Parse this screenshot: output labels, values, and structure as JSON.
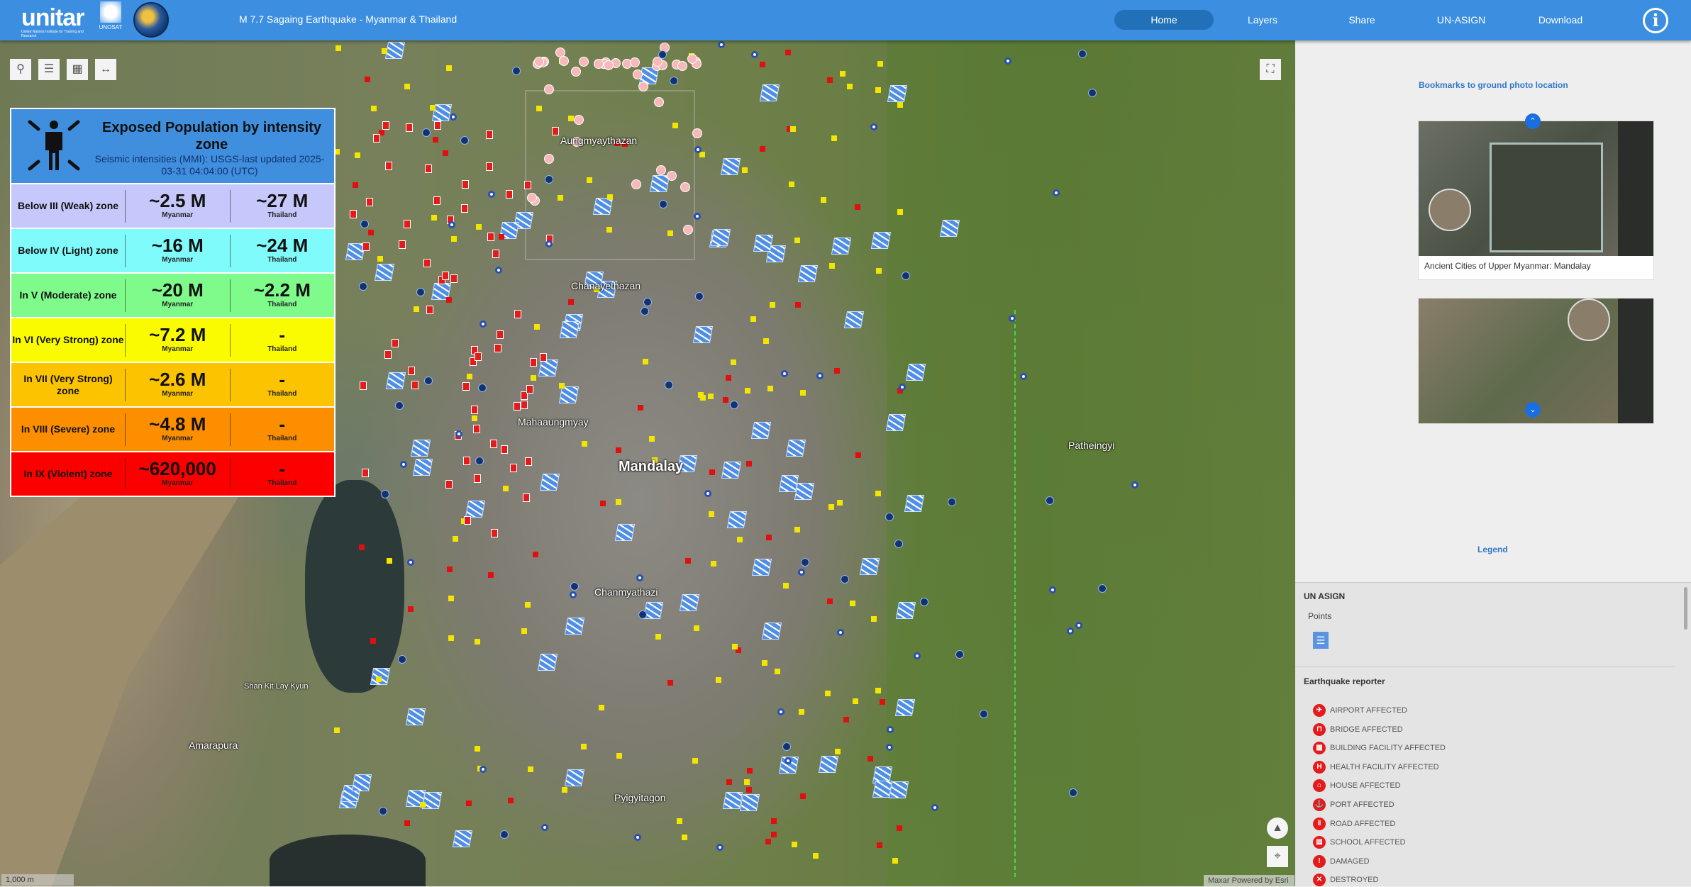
{
  "header": {
    "logo_unitar": "unitar",
    "logo_unitar_sub": "United Nations Institute for Training and Research",
    "logo_unosat": "UNOSAT",
    "title": "M 7.7 Sagaing Earthquake - Myanmar & Thailand",
    "nav": [
      {
        "label": "Home",
        "active": true
      },
      {
        "label": "Layers"
      },
      {
        "label": "Share"
      },
      {
        "label": "UN-ASIGN"
      },
      {
        "label": "Download"
      }
    ],
    "info_icon": "info-icon"
  },
  "map": {
    "labels": [
      "Aungmyaythazan",
      "Chanayethazan",
      "Mahaaungmyay",
      "Mandalay",
      "Chanmyathazi",
      "Pyigyitagon",
      "Amarapura",
      "Patheingyi",
      "Shan Kit Lay Kyun"
    ],
    "tools": [
      "search-icon",
      "layers-icon",
      "basemap-gallery-icon",
      "measure-icon"
    ],
    "scale": "1,000 m",
    "attribution": "Maxar  Powered by Esri"
  },
  "population": {
    "title": "Exposed Population by intensity zone",
    "subtitle": "Seismic intensities (MMI): USGS-last updated 2025-03-31 04:04:00 (UTC)",
    "country_a": "Myanmar",
    "country_b": "Thailand",
    "rows": [
      {
        "zone": "Below III (Weak) zone",
        "myanmar": "~2.5 M",
        "thailand": "~27 M",
        "color": "#c6c8fb"
      },
      {
        "zone": "Below IV (Light) zone",
        "myanmar": "~16 M",
        "thailand": "~24 M",
        "color": "#7ffbfb"
      },
      {
        "zone": "In V (Moderate) zone",
        "myanmar": "~20 M",
        "thailand": "~2.2 M",
        "color": "#7ffb8c"
      },
      {
        "zone": "In VI (Very Strong) zone",
        "myanmar": "~7.2 M",
        "thailand": "-",
        "color": "#fbfb00"
      },
      {
        "zone": "In VII (Very Strong) zone",
        "myanmar": "~2.6 M",
        "thailand": "-",
        "color": "#fcc300"
      },
      {
        "zone": "In VIII (Severe) zone",
        "myanmar": "~4.8 M",
        "thailand": "-",
        "color": "#fc8e00"
      },
      {
        "zone": "In IX (Violent) zone",
        "myanmar": "~620,000",
        "thailand": "-",
        "color": "#fc0000"
      }
    ]
  },
  "panel": {
    "bookmarks_title": "Bookmarks to ground photo location",
    "cards": [
      {
        "caption": "Ancient Cities of Upper Myanmar: Mandalay"
      },
      {
        "caption": ""
      }
    ],
    "legend_link": "Legend",
    "legend": {
      "un_asign": "UN ASIGN",
      "points": "Points",
      "reporter": "Earthquake reporter",
      "items": [
        "AIRPORT AFFECTED",
        "BRIDGE AFFECTED",
        "BUILDING FACILITY AFFECTED",
        "HEALTH FACILITY AFFECTED",
        "HOUSE AFFECTED",
        "PORT AFFECTED",
        "ROAD AFFECTED",
        "SCHOOL AFFECTED",
        "DAMAGED",
        "DESTROYED"
      ]
    }
  },
  "colors": {
    "header": "#3b8ee0",
    "accent": "#2f78c8",
    "un_asign_marker": "#4f8fe6",
    "reporter_marker": "#e31b1b"
  }
}
